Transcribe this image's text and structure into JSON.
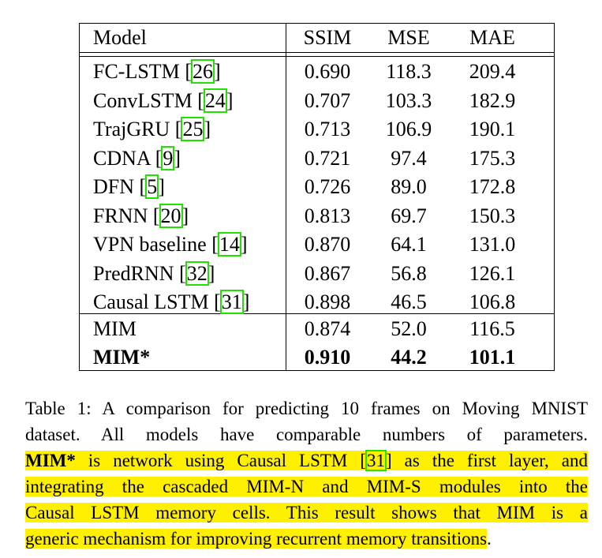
{
  "table": {
    "headers": [
      "Model",
      "SSIM",
      "MSE",
      "MAE"
    ],
    "groups": [
      [
        {
          "model": "FC-LSTM",
          "ref": "26",
          "ssim": "0.690",
          "mse": "118.3",
          "mae": "209.4"
        },
        {
          "model": "ConvLSTM",
          "ref": "24",
          "ssim": "0.707",
          "mse": "103.3",
          "mae": "182.9"
        },
        {
          "model": "TrajGRU",
          "ref": "25",
          "ssim": "0.713",
          "mse": "106.9",
          "mae": "190.1"
        },
        {
          "model": "CDNA",
          "ref": "9",
          "ssim": "0.721",
          "mse": "97.4",
          "mae": "175.3"
        },
        {
          "model": "DFN",
          "ref": "5",
          "ssim": "0.726",
          "mse": "89.0",
          "mae": "172.8"
        },
        {
          "model": "FRNN",
          "ref": "20",
          "ssim": "0.813",
          "mse": "69.7",
          "mae": "150.3"
        },
        {
          "model": "VPN baseline",
          "ref": "14",
          "ssim": "0.870",
          "mse": "64.1",
          "mae": "131.0"
        },
        {
          "model": "PredRNN",
          "ref": "32",
          "ssim": "0.867",
          "mse": "56.8",
          "mae": "126.1"
        },
        {
          "model": "Causal LSTM",
          "ref": "31",
          "ssim": "0.898",
          "mse": "46.5",
          "mae": "106.8"
        }
      ],
      [
        {
          "model": "MIM",
          "ssim": "0.874",
          "mse": "52.0",
          "mae": "116.5"
        },
        {
          "model": "MIM*",
          "ssim": "0.910",
          "mse": "44.2",
          "mae": "101.1",
          "bold": true
        }
      ]
    ]
  },
  "caption": {
    "lines": [
      [
        {
          "text": "Table 1: A comparison for predicting 10 frames on Moving MNIST"
        }
      ],
      [
        {
          "text": "dataset. All models have comparable numbers of parameters."
        }
      ],
      [
        {
          "text": "MIM*",
          "bold": true,
          "hl": true
        },
        {
          "text": " is network using Causal LSTM [",
          "hl": true
        },
        {
          "text": "31",
          "ref": true,
          "hl": true
        },
        {
          "text": "] as the first layer, and",
          "hl": true
        }
      ],
      [
        {
          "text": "integrating the cascaded MIM-N and MIM-S modules into the",
          "hl": true
        }
      ],
      [
        {
          "text": "Causal LSTM memory cells. This result shows that MIM is a",
          "hl": true
        }
      ],
      [
        {
          "text": "generic mechanism for improving recurrent memory transitions",
          "hl": true
        },
        {
          "text": "."
        }
      ]
    ]
  },
  "colors": {
    "highlight": "#fff000",
    "ref_box": "#22e000"
  }
}
